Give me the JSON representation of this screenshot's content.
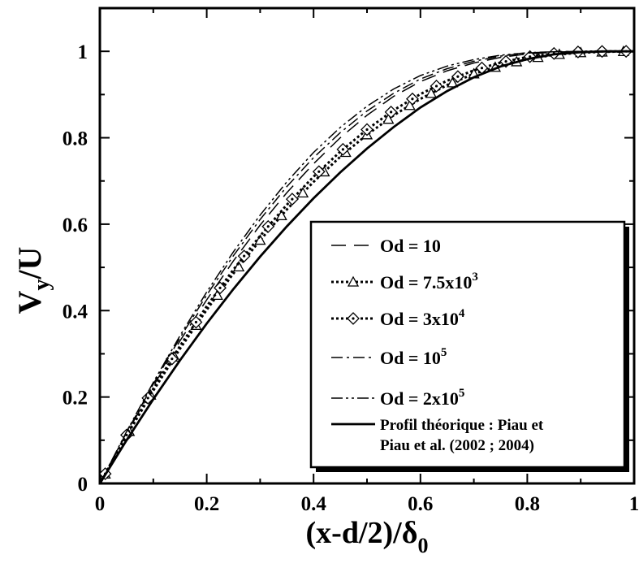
{
  "chart_data": {
    "type": "line",
    "xlabel": {
      "main": "(x-d/2)/δ",
      "sub": "0"
    },
    "ylabel": {
      "main": "V",
      "sub": "y",
      "tail": "/U"
    },
    "xlim": [
      0,
      1
    ],
    "ylim": [
      0,
      1.1
    ],
    "x_ticks": [
      "0",
      "0.2",
      "0.4",
      "0.6",
      "0.8",
      "1"
    ],
    "y_ticks": [
      "0",
      "0.2",
      "0.4",
      "0.6",
      "0.8",
      "1"
    ],
    "grid": false,
    "legend_position": "bottom-right",
    "series": [
      {
        "name": "Od = 10",
        "name_base": "Od = 10",
        "name_sup": "",
        "style": "long-dash",
        "marker": "none",
        "x": [
          0,
          0.05,
          0.1,
          0.15,
          0.2,
          0.25,
          0.3,
          0.35,
          0.4,
          0.45,
          0.5,
          0.55,
          0.6,
          0.65,
          0.7,
          0.75,
          0.8,
          0.85,
          0.9,
          0.95,
          1.0
        ],
        "y": [
          0,
          0.115,
          0.225,
          0.33,
          0.425,
          0.515,
          0.598,
          0.673,
          0.74,
          0.8,
          0.852,
          0.896,
          0.93,
          0.955,
          0.973,
          0.986,
          0.994,
          0.998,
          1.0,
          1.0,
          1.0
        ]
      },
      {
        "name": "Od = 7.5x10^3",
        "name_base": "Od = 7.5x10",
        "name_sup": "3",
        "style": "dotted",
        "marker": "triangle",
        "x": [
          0,
          0.05,
          0.1,
          0.15,
          0.2,
          0.25,
          0.3,
          0.35,
          0.4,
          0.45,
          0.5,
          0.55,
          0.6,
          0.65,
          0.7,
          0.75,
          0.8,
          0.85,
          0.9,
          0.95,
          1.0
        ],
        "y": [
          0,
          0.11,
          0.215,
          0.312,
          0.402,
          0.486,
          0.563,
          0.634,
          0.698,
          0.756,
          0.807,
          0.852,
          0.89,
          0.922,
          0.948,
          0.967,
          0.982,
          0.992,
          0.997,
          0.999,
          1.0
        ],
        "marker_x": [
          0.01,
          0.055,
          0.095,
          0.14,
          0.18,
          0.22,
          0.26,
          0.3,
          0.34,
          0.38,
          0.42,
          0.46,
          0.5,
          0.54,
          0.58,
          0.62,
          0.66,
          0.7,
          0.74,
          0.78,
          0.82,
          0.86,
          0.9,
          0.94,
          0.98
        ]
      },
      {
        "name": "Od = 3x10^4",
        "name_base": "Od = 3x10",
        "name_sup": "4",
        "style": "dotted",
        "marker": "diamond",
        "x": [
          0,
          0.05,
          0.1,
          0.15,
          0.2,
          0.25,
          0.3,
          0.35,
          0.4,
          0.45,
          0.5,
          0.55,
          0.6,
          0.65,
          0.7,
          0.75,
          0.8,
          0.85,
          0.9,
          0.95,
          1.0
        ],
        "y": [
          0,
          0.112,
          0.219,
          0.318,
          0.41,
          0.495,
          0.573,
          0.645,
          0.71,
          0.768,
          0.819,
          0.864,
          0.901,
          0.932,
          0.956,
          0.974,
          0.987,
          0.995,
          0.999,
          1.0,
          1.0
        ],
        "marker_x": [
          0.01,
          0.05,
          0.09,
          0.135,
          0.18,
          0.225,
          0.27,
          0.315,
          0.36,
          0.41,
          0.455,
          0.5,
          0.545,
          0.585,
          0.63,
          0.67,
          0.715,
          0.76,
          0.805,
          0.85,
          0.895,
          0.94,
          0.985
        ]
      },
      {
        "name": "Od = 10^5",
        "name_base": "Od = 10",
        "name_sup": "5",
        "style": "dash-dot",
        "marker": "none",
        "x": [
          0,
          0.05,
          0.1,
          0.15,
          0.2,
          0.25,
          0.3,
          0.35,
          0.4,
          0.45,
          0.5,
          0.55,
          0.6,
          0.65,
          0.7,
          0.75,
          0.8,
          0.85,
          0.9,
          0.95,
          1.0
        ],
        "y": [
          0,
          0.118,
          0.23,
          0.337,
          0.436,
          0.527,
          0.611,
          0.687,
          0.754,
          0.812,
          0.862,
          0.903,
          0.936,
          0.96,
          0.977,
          0.989,
          0.996,
          0.999,
          1.0,
          1.0,
          1.0
        ]
      },
      {
        "name": "Od = 2x10^5",
        "name_base": "Od = 2x10",
        "name_sup": "5",
        "style": "dash-dot-dot",
        "marker": "none",
        "x": [
          0,
          0.05,
          0.1,
          0.15,
          0.2,
          0.25,
          0.3,
          0.35,
          0.4,
          0.45,
          0.5,
          0.55,
          0.6,
          0.65,
          0.7,
          0.75,
          0.8,
          0.85,
          0.9,
          0.95,
          1.0
        ],
        "y": [
          0,
          0.12,
          0.234,
          0.342,
          0.443,
          0.536,
          0.621,
          0.698,
          0.766,
          0.824,
          0.873,
          0.913,
          0.944,
          0.966,
          0.981,
          0.991,
          0.997,
          0.999,
          1.0,
          1.0,
          1.0
        ]
      },
      {
        "name": "Profil théorique : Piau et Piau et al. (2002 ; 2004)",
        "name_lines": [
          "Profil théorique : Piau et",
          "Piau et al. (2002 ; 2004)"
        ],
        "style": "solid",
        "marker": "none",
        "x": [
          0,
          0.05,
          0.1,
          0.15,
          0.2,
          0.25,
          0.3,
          0.35,
          0.4,
          0.45,
          0.5,
          0.55,
          0.6,
          0.65,
          0.7,
          0.75,
          0.8,
          0.85,
          0.9,
          0.95,
          1.0
        ],
        "y": [
          0,
          0.1,
          0.195,
          0.285,
          0.37,
          0.45,
          0.525,
          0.595,
          0.66,
          0.72,
          0.775,
          0.825,
          0.87,
          0.908,
          0.94,
          0.965,
          0.982,
          0.993,
          0.998,
          1.0,
          1.0
        ]
      }
    ]
  }
}
